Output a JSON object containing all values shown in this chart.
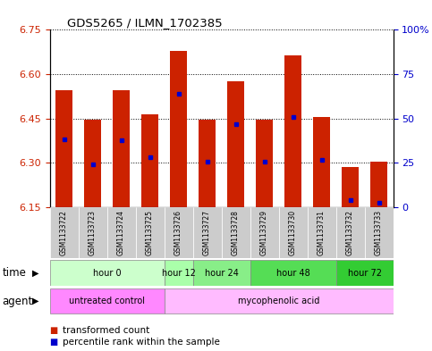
{
  "title": "GDS5265 / ILMN_1702385",
  "samples": [
    "GSM1133722",
    "GSM1133723",
    "GSM1133724",
    "GSM1133725",
    "GSM1133726",
    "GSM1133727",
    "GSM1133728",
    "GSM1133729",
    "GSM1133730",
    "GSM1133731",
    "GSM1133732",
    "GSM1133733"
  ],
  "bar_bottom": 6.15,
  "bar_tops": [
    6.545,
    6.445,
    6.545,
    6.465,
    6.68,
    6.445,
    6.575,
    6.445,
    6.665,
    6.455,
    6.285,
    6.305
  ],
  "percentile_values": [
    6.38,
    6.295,
    6.375,
    6.32,
    6.535,
    6.305,
    6.43,
    6.305,
    6.455,
    6.31,
    6.175,
    6.165
  ],
  "ylim_left": [
    6.15,
    6.75
  ],
  "ylim_right": [
    0,
    100
  ],
  "yticks_left": [
    6.15,
    6.3,
    6.45,
    6.6,
    6.75
  ],
  "yticks_right": [
    0,
    25,
    50,
    75,
    100
  ],
  "ytick_labels_right": [
    "0",
    "25",
    "50",
    "75",
    "100%"
  ],
  "bar_color": "#cc2200",
  "percentile_color": "#0000cc",
  "bg_color": "#ffffff",
  "plot_bg": "#ffffff",
  "grid_color": "#000000",
  "left_tick_color": "#cc2200",
  "right_tick_color": "#0000cc",
  "time_groups": [
    {
      "label": "hour 0",
      "start": 0,
      "end": 4,
      "color": "#ccffcc"
    },
    {
      "label": "hour 12",
      "start": 4,
      "end": 5,
      "color": "#aaffaa"
    },
    {
      "label": "hour 24",
      "start": 5,
      "end": 7,
      "color": "#88ee88"
    },
    {
      "label": "hour 48",
      "start": 7,
      "end": 10,
      "color": "#55dd55"
    },
    {
      "label": "hour 72",
      "start": 10,
      "end": 12,
      "color": "#33cc33"
    }
  ],
  "agent_groups": [
    {
      "label": "untreated control",
      "start": 0,
      "end": 4,
      "color": "#ff88ff"
    },
    {
      "label": "mycophenolic acid",
      "start": 4,
      "end": 12,
      "color": "#ffbbff"
    }
  ],
  "legend_red": "transformed count",
  "legend_blue": "percentile rank within the sample",
  "xlabel_time": "time",
  "xlabel_agent": "agent",
  "bar_width": 0.6
}
